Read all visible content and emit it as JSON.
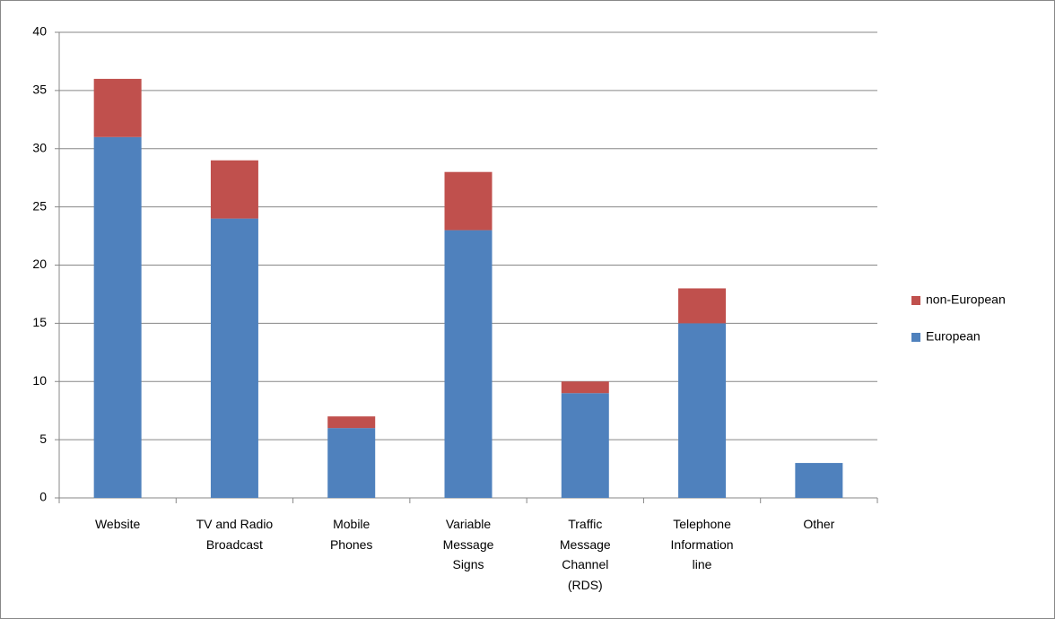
{
  "chart_data": {
    "type": "stacked_bar",
    "categories": [
      "Website",
      "TV and Radio Broadcast",
      "Mobile Phones",
      "Variable Message Signs",
      "Traffic Message Channel (RDS)",
      "Telephone Information line",
      "Other"
    ],
    "series": [
      {
        "name": "European",
        "color": "#4f81bd",
        "values": [
          31,
          24,
          6,
          23,
          9,
          15,
          3
        ]
      },
      {
        "name": "non-European",
        "color": "#c0504d",
        "values": [
          5,
          5,
          1,
          5,
          1,
          3,
          0
        ]
      }
    ],
    "ylim": [
      0,
      40
    ],
    "yticks": [
      0,
      5,
      10,
      15,
      20,
      25,
      30,
      35,
      40
    ],
    "grid": true,
    "legend": "right"
  }
}
